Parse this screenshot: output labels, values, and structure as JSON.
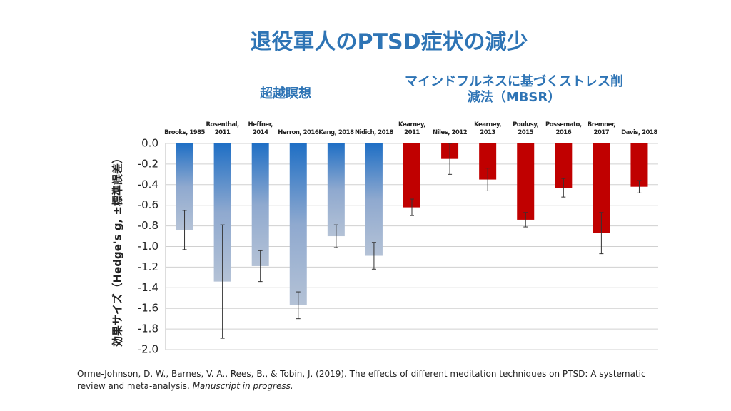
{
  "chart_data": {
    "type": "bar",
    "title": "退役軍人のPTSD症状の減少",
    "y_label": "効果サイズ（Hedge's g, ±標準誤差）",
    "categories": [
      "Brooks, 1985",
      "Rosenthal, 2011",
      "Heffner, 2014",
      "Herron, 2016",
      "Kang, 2018",
      "Nidich, 2018",
      "Kearney, 2011",
      "Niles, 2012",
      "Kearney, 2013",
      "Poulusy, 2015",
      "Possemato, 2016",
      "Bremner, 2017",
      "Davis, 2018"
    ],
    "series": [
      {
        "name": "超越瞑想",
        "color": "#1f6fc5",
        "values": [
          -0.84,
          -1.34,
          -1.19,
          -1.57,
          -0.9,
          -1.09,
          null,
          null,
          null,
          null,
          null,
          null,
          null
        ],
        "errors": [
          0.19,
          0.55,
          0.15,
          0.13,
          0.11,
          0.13,
          null,
          null,
          null,
          null,
          null,
          null,
          null
        ]
      },
      {
        "name": "マインドフルネスに基づくストレス削減法（MBSR）",
        "color": "#c00000",
        "values": [
          null,
          null,
          null,
          null,
          null,
          null,
          -0.62,
          -0.15,
          -0.35,
          -0.74,
          -0.43,
          -0.87,
          -0.42
        ],
        "errors": [
          null,
          null,
          null,
          null,
          null,
          null,
          0.08,
          0.15,
          0.11,
          0.07,
          0.09,
          0.2,
          0.06
        ]
      }
    ],
    "ylim": [
      -2.0,
      0.0
    ],
    "yticks": [
      {
        "value": 0,
        "label": "0.0"
      },
      -0.2,
      -0.4,
      -0.6,
      -0.8,
      {
        "value": -1,
        "label": "-1.0"
      },
      -1.2,
      -1.4,
      -1.6,
      -1.8,
      {
        "value": -2,
        "label": "-2.0"
      }
    ],
    "grid": true,
    "citation": "Orme-Johnson, D. W., Barnes, V. A., Rees, B., & Tobin, J. (2019). The effects of different meditation techniques on PTSD: A systematic review and meta-analysis.",
    "citation_italic": "Manuscript in progress."
  }
}
